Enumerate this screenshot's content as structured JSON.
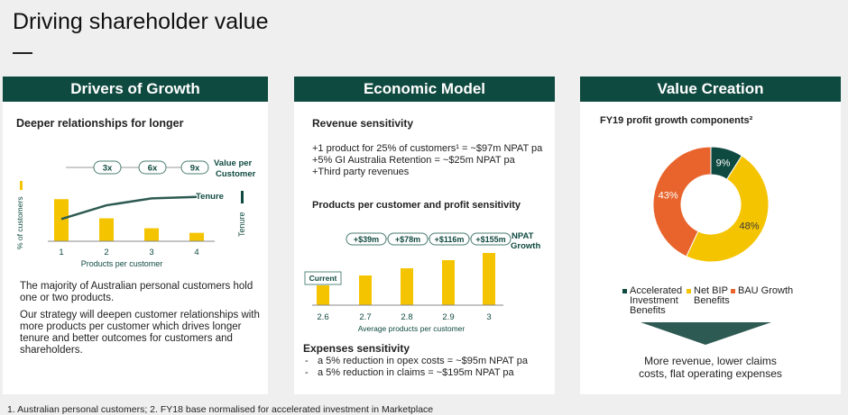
{
  "page": {
    "title": "Driving shareholder value"
  },
  "drivers": {
    "header": "Drivers of Growth",
    "subtitle": "Deeper relationships for longer",
    "multipliers": [
      "3x",
      "6x",
      "9x"
    ],
    "value_label_1": "Value per",
    "value_label_2": "Customer",
    "tenure_label": "Tenure",
    "tenure_axis": "Tenure",
    "y_axis": "% of customers",
    "x_axis": "Products per customer",
    "text_1": "The majority of Australian personal customers hold one or two products.",
    "text_2": "Our strategy will deepen customer relationships with more products per customer which drives longer tenure and better outcomes for customers and shareholders."
  },
  "econ": {
    "header": "Economic Model",
    "rev_title": "Revenue sensitivity",
    "rev_lines": [
      "+1 product for 25% of customers¹ = ~$97m NPAT pa",
      "+5% GI Australia Retention = ~$25m NPAT pa",
      "+Third party revenues"
    ],
    "ppc_title": "Products per customer and profit sensitivity",
    "npat_1": "NPAT",
    "npat_2": "Growth",
    "current_label": "Current",
    "x_axis": "Average products per customer",
    "exp_title": "Expenses sensitivity",
    "exp_lines": [
      "a 5% reduction in opex costs = ~$95m NPAT pa",
      "a 5% reduction in claims = ~$195m NPAT pa"
    ]
  },
  "value": {
    "header": "Value Creation",
    "subtitle": "FY19 profit growth components²",
    "legend": [
      {
        "label_1": "Accelerated",
        "label_2": "Investment",
        "label_3": "Benefits",
        "color": "#0f4a40"
      },
      {
        "label_1": "Net BIP",
        "label_2": "Benefits",
        "color": "#f5c400"
      },
      {
        "label_1": "BAU Growth",
        "color": "#e8642c"
      }
    ],
    "conclusion_1": "More revenue, lower claims",
    "conclusion_2": "costs, flat operating expenses"
  },
  "footer": "1. Australian personal customers; 2. FY18 base normalised for accelerated investment in Marketplace",
  "chart_data": [
    {
      "type": "bar",
      "categories": [
        "1",
        "2",
        "3",
        "4"
      ],
      "values": [
        55,
        30,
        17,
        11
      ],
      "line_series": {
        "name": "Tenure",
        "values": [
          29,
          47,
          56,
          58
        ]
      },
      "xlabel": "Products per customer",
      "ylabel": "% of customers",
      "ylim": [
        0,
        100
      ]
    },
    {
      "type": "bar",
      "categories": [
        "2.6",
        "2.7",
        "2.8",
        "2.9",
        "3"
      ],
      "values": [
        22,
        33,
        41,
        50,
        58
      ],
      "increments": [
        "+$39m",
        "+$78m",
        "+$116m",
        "+$155m"
      ],
      "xlabel": "Average products per customer",
      "ylim": [
        0,
        60
      ]
    },
    {
      "type": "pie",
      "labels": [
        "Accelerated Investment Benefits",
        "Net BIP Benefits",
        "BAU Growth"
      ],
      "values": [
        9,
        48,
        43
      ],
      "value_labels": [
        "9%",
        "48%",
        "43%"
      ],
      "colors": [
        "#0f4a40",
        "#f5c400",
        "#e8642c"
      ]
    }
  ]
}
